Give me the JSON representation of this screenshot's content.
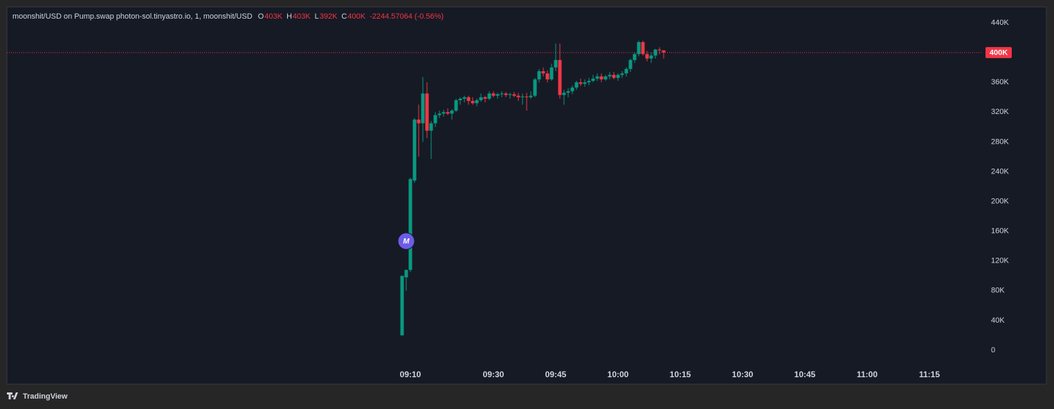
{
  "chart_data": {
    "type": "candlestick",
    "title": "moonshit/USD on Pump.swap photon-sol.tinyastro.io, 1, moonshit/USD",
    "ohlc_legend": [
      {
        "label": "O",
        "value": "403K"
      },
      {
        "label": "H",
        "value": "403K"
      },
      {
        "label": "L",
        "value": "392K"
      },
      {
        "label": "C",
        "value": "400K"
      }
    ],
    "change": "-2244.57064 (-0.56%)",
    "x": [
      "09:08",
      "09:09",
      "09:10",
      "09:11",
      "09:12",
      "09:13",
      "09:14",
      "09:15",
      "09:16",
      "09:17",
      "09:18",
      "09:19",
      "09:20",
      "09:21",
      "09:22",
      "09:23",
      "09:24",
      "09:25",
      "09:26",
      "09:27",
      "09:28",
      "09:29",
      "09:30",
      "09:31",
      "09:32",
      "09:33",
      "09:34",
      "09:35",
      "09:36",
      "09:37",
      "09:38",
      "09:39",
      "09:40",
      "09:41",
      "09:42",
      "09:43",
      "09:44",
      "09:45",
      "09:46",
      "09:47",
      "09:48",
      "09:49",
      "09:50",
      "09:51",
      "09:52",
      "09:53",
      "09:54",
      "09:55",
      "09:56",
      "09:57",
      "09:58",
      "09:59",
      "10:00",
      "10:01",
      "10:02",
      "10:03",
      "10:04",
      "10:05",
      "10:06",
      "10:07",
      "10:08",
      "10:09",
      "10:10",
      "10:11"
    ],
    "open": [
      20000,
      98000,
      108000,
      228000,
      310000,
      305000,
      345000,
      295000,
      305000,
      316000,
      318000,
      320000,
      318000,
      322000,
      336000,
      338000,
      340000,
      335000,
      332000,
      336000,
      340000,
      338000,
      345000,
      342000,
      344000,
      345000,
      343000,
      344000,
      342000,
      340000,
      341000,
      340000,
      342000,
      364000,
      375000,
      372000,
      364000,
      380000,
      390000,
      343000,
      346000,
      348000,
      353000,
      360000,
      358000,
      360000,
      362000,
      365000,
      368000,
      364000,
      368000,
      370000,
      366000,
      370000,
      372000,
      378000,
      390000,
      398000,
      414000,
      398000,
      392000,
      396000,
      404000,
      403000
    ],
    "high": [
      100000,
      108000,
      232000,
      312000,
      330000,
      367000,
      360000,
      308000,
      320000,
      322000,
      323000,
      325000,
      324000,
      338000,
      340000,
      342000,
      342000,
      340000,
      338000,
      345000,
      342000,
      348000,
      348000,
      346000,
      348000,
      347000,
      346000,
      347000,
      346000,
      345000,
      346000,
      348000,
      366000,
      378000,
      380000,
      376000,
      385000,
      412000,
      412000,
      350000,
      352000,
      356000,
      362000,
      365000,
      364000,
      366000,
      370000,
      372000,
      372000,
      370000,
      374000,
      374000,
      372000,
      375000,
      380000,
      392000,
      400000,
      416000,
      416000,
      402000,
      400000,
      405000,
      407000,
      403000
    ],
    "low": [
      20000,
      80000,
      105000,
      225000,
      260000,
      280000,
      285000,
      257000,
      300000,
      312000,
      314000,
      316000,
      310000,
      320000,
      330000,
      333000,
      330000,
      330000,
      328000,
      334000,
      333000,
      336000,
      340000,
      338000,
      340000,
      340000,
      338000,
      340000,
      335000,
      330000,
      322000,
      338000,
      340000,
      360000,
      368000,
      360000,
      362000,
      375000,
      338000,
      330000,
      340000,
      344000,
      350000,
      355000,
      354000,
      356000,
      360000,
      362000,
      360000,
      362000,
      364000,
      364000,
      362000,
      366000,
      368000,
      374000,
      386000,
      395000,
      396000,
      388000,
      386000,
      392000,
      398000,
      392000
    ],
    "close": [
      100000,
      108000,
      230000,
      310000,
      305000,
      345000,
      295000,
      305000,
      316000,
      318000,
      320000,
      318000,
      322000,
      336000,
      338000,
      340000,
      335000,
      332000,
      336000,
      340000,
      338000,
      345000,
      342000,
      344000,
      345000,
      343000,
      344000,
      342000,
      340000,
      341000,
      340000,
      342000,
      364000,
      375000,
      372000,
      364000,
      380000,
      390000,
      343000,
      346000,
      348000,
      353000,
      360000,
      358000,
      360000,
      362000,
      365000,
      368000,
      364000,
      368000,
      370000,
      366000,
      370000,
      372000,
      378000,
      390000,
      398000,
      414000,
      398000,
      392000,
      396000,
      404000,
      403000,
      400000
    ],
    "up_color": "#089981",
    "down_color": "#f23645",
    "ylim": [
      0,
      440000
    ],
    "yticks": [
      0,
      {
        "value": 40000,
        "label": "40K"
      },
      {
        "value": 80000,
        "label": "80K"
      },
      {
        "value": 120000,
        "label": "120K"
      },
      {
        "value": 160000,
        "label": "160K"
      },
      {
        "value": 200000,
        "label": "200K"
      },
      {
        "value": 240000,
        "label": "240K"
      },
      {
        "value": 280000,
        "label": "280K"
      },
      {
        "value": 320000,
        "label": "320K"
      },
      {
        "value": 360000,
        "label": "360K"
      },
      {
        "value": 400000,
        "label": "400K"
      },
      {
        "value": 440000,
        "label": "440K"
      }
    ],
    "xticks": [
      "09:10",
      "09:30",
      "09:45",
      "10:00",
      "10:15",
      "10:30",
      "10:45",
      "11:00",
      "11:15"
    ],
    "last_price": {
      "value": 400000,
      "label": "400K"
    },
    "marker": {
      "x": "09:09",
      "label": "M"
    },
    "brand": "TradingView",
    "grid": false
  }
}
